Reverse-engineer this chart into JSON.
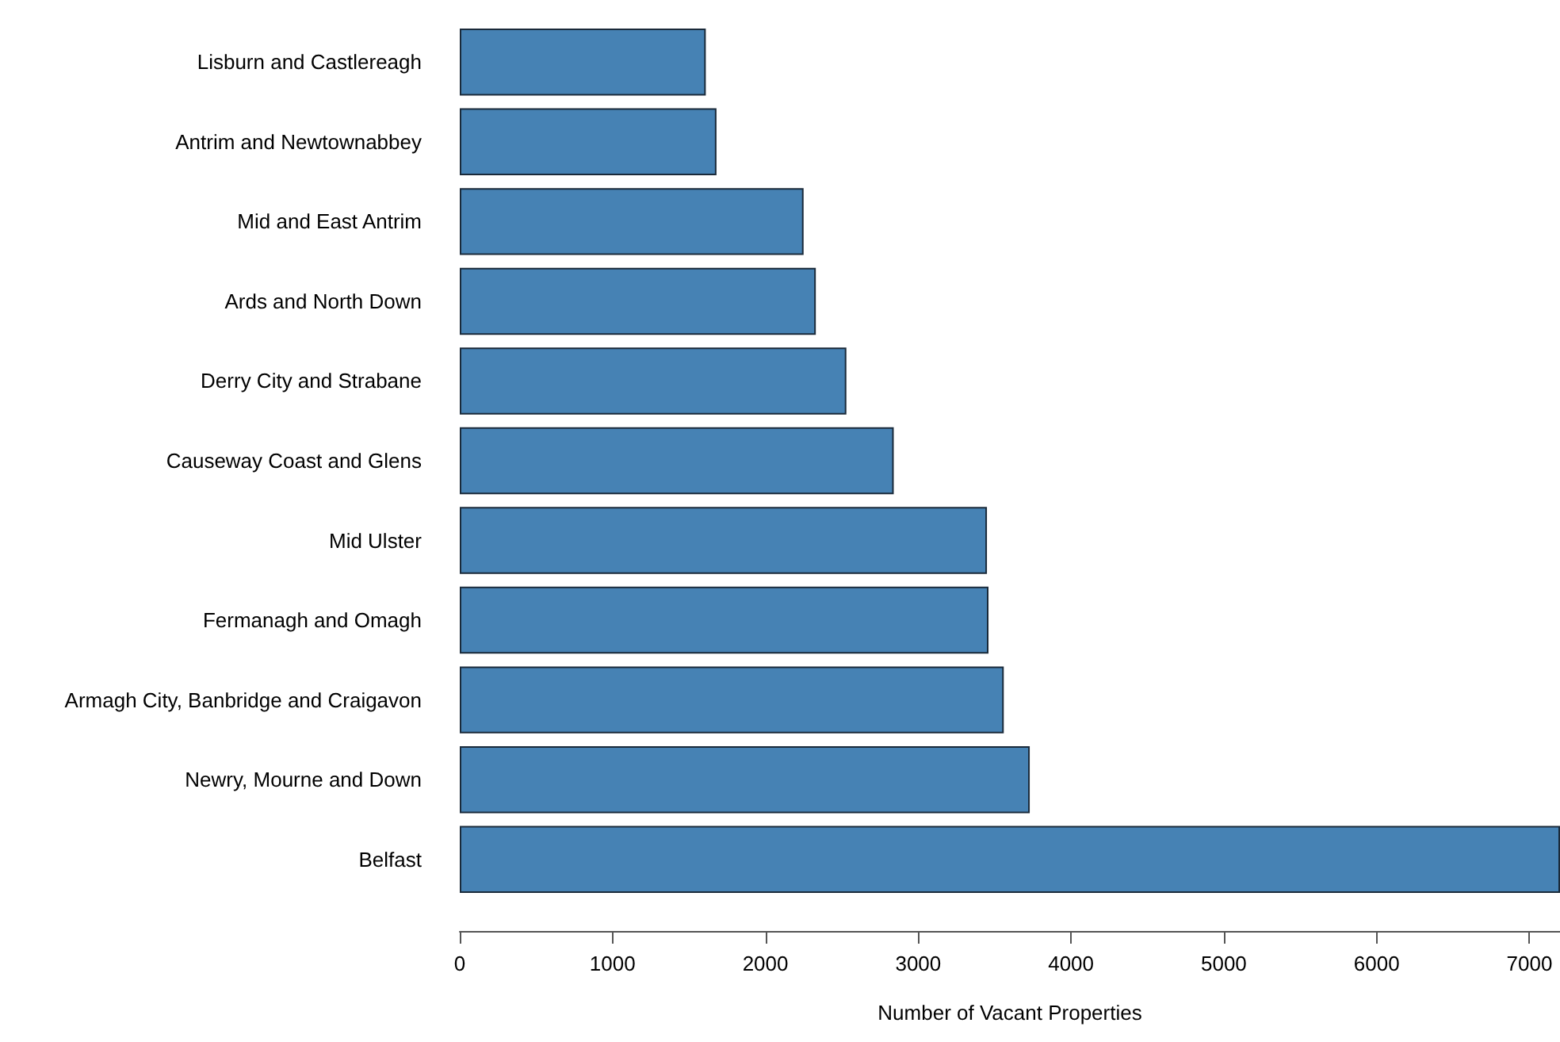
{
  "chart_data": {
    "type": "bar",
    "orientation": "horizontal",
    "xlabel": "Number of Vacant Properties",
    "categories": [
      "Lisburn and Castlereagh",
      "Antrim and Newtownabbey",
      "Mid and East Antrim",
      "Ards and North Down",
      "Derry City and Strabane",
      "Causeway Coast and Glens",
      "Mid Ulster",
      "Fermanagh and Omagh",
      "Armagh City, Banbridge and Craigavon",
      "Newry, Mourne and Down",
      "Belfast"
    ],
    "values": [
      1610,
      1680,
      2250,
      2330,
      2530,
      2840,
      3450,
      3460,
      3560,
      3730,
      7200
    ],
    "color": "#4682b4",
    "xlim": [
      0,
      7200
    ],
    "xticks": [
      0,
      1000,
      2000,
      3000,
      4000,
      5000,
      6000,
      7000
    ],
    "grid": false
  }
}
